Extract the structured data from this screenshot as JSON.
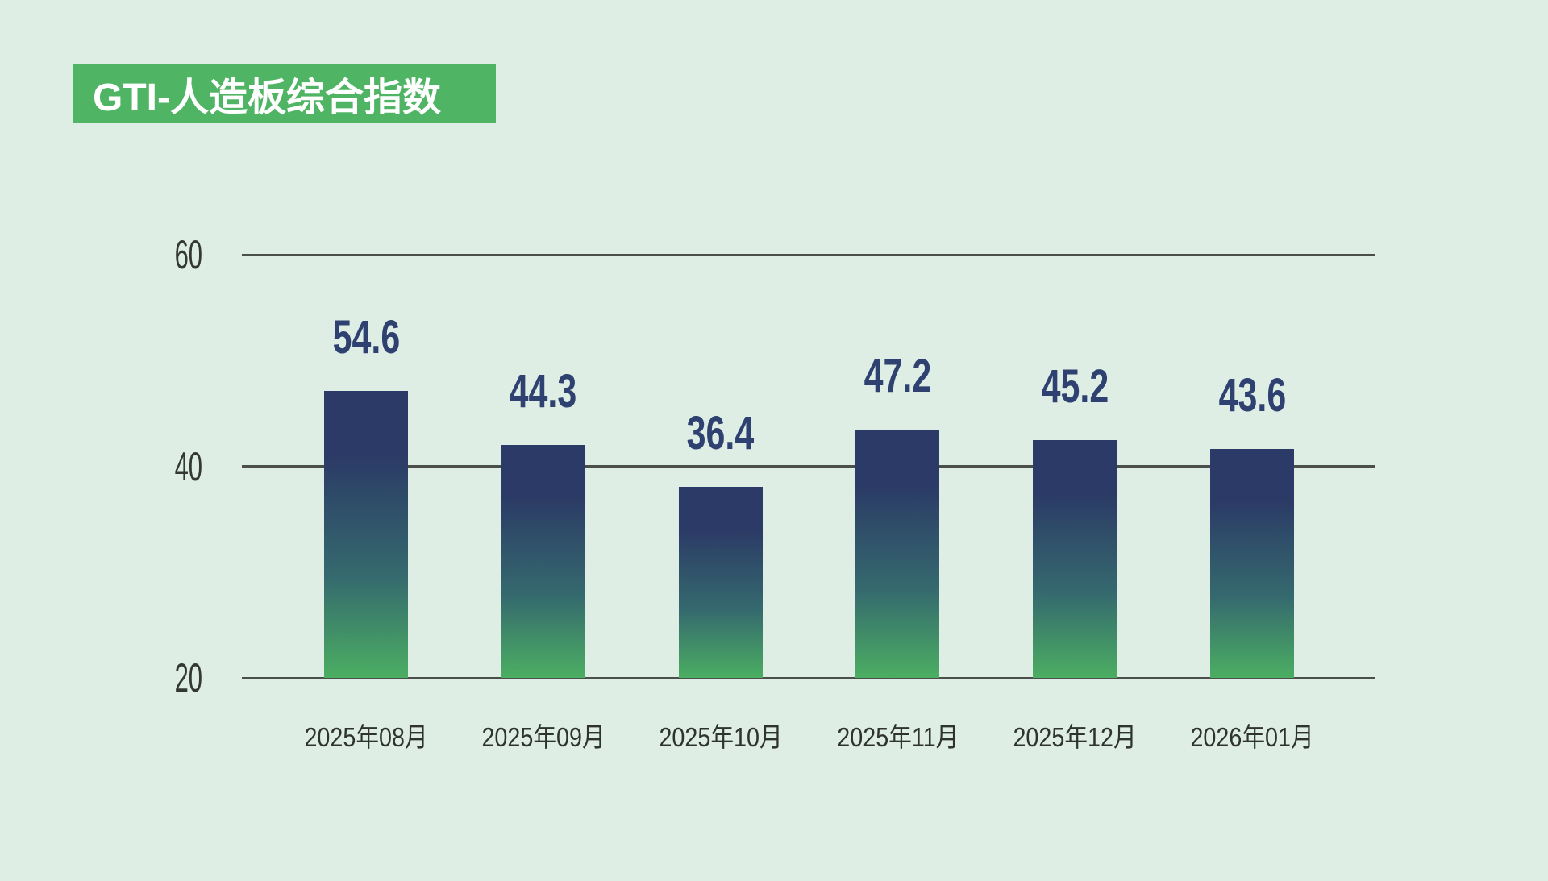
{
  "page": {
    "background_color": "#dfeee5"
  },
  "header": {
    "title": "GTI-人造板综合指数",
    "badge_color": "#4fb463",
    "text_color": "#ffffff"
  },
  "chart_data": {
    "type": "bar",
    "title": "GTI-人造板综合指数",
    "categories": [
      "2025年08月",
      "2025年09月",
      "2025年10月",
      "2025年11月",
      "2025年12月",
      "2026年01月"
    ],
    "values": [
      54.6,
      44.3,
      36.4,
      47.2,
      45.2,
      43.6
    ],
    "value_labels": [
      "54.6",
      "44.3",
      "36.4",
      "47.2",
      "45.2",
      "43.6"
    ],
    "xlabel": "",
    "ylabel": "",
    "y_ticks": [
      20,
      40,
      60
    ],
    "y_tick_labels": [
      "20",
      "40",
      "60"
    ],
    "ylim": [
      20,
      60
    ],
    "grid": "horizontal",
    "legend": "none",
    "colors": {
      "gridline": "#4a4f4b",
      "tick_label": "#333834",
      "x_label": "#2e3330",
      "value_label": "#2e4170",
      "bar_gradient_top": "#2b3a66",
      "bar_gradient_mid": "#356a6e",
      "bar_gradient_bottom": "#4bae62"
    }
  }
}
